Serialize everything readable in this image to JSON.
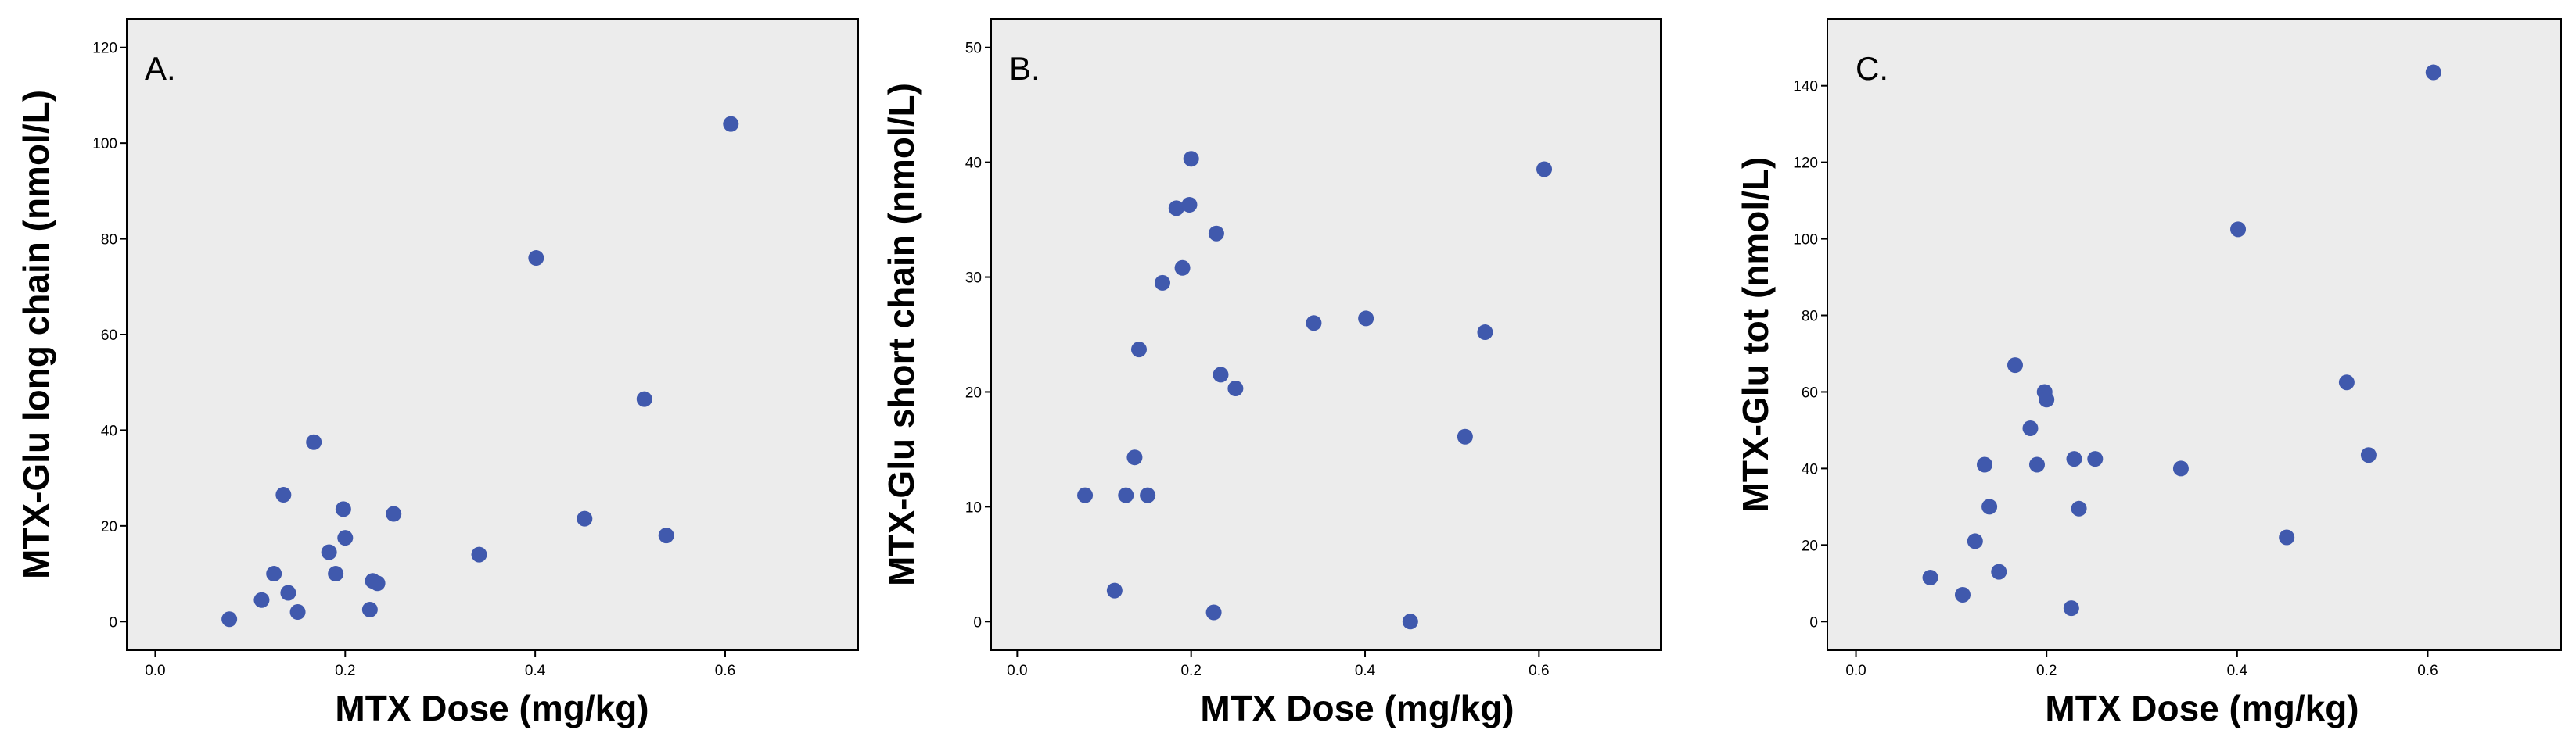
{
  "colors": {
    "point": "#4059ad",
    "plot_background": "#ececec",
    "axis": "#000000"
  },
  "chart_data": [
    {
      "type": "scatter",
      "panel_label": "A.",
      "xlabel": "MTX Dose (mg/kg)",
      "ylabel": "MTX-Glu long chain (nmol/L)",
      "xlim": [
        -0.03,
        0.74
      ],
      "ylim": [
        -6,
        126
      ],
      "xticks": [
        0.0,
        0.2,
        0.4,
        0.6
      ],
      "xtick_labels": [
        "0.0",
        "0.2",
        "0.4",
        "0.6"
      ],
      "yticks": [
        0,
        20,
        40,
        60,
        80,
        100,
        120
      ],
      "ytick_labels": [
        "0",
        "20",
        "40",
        "60",
        "80",
        "100",
        "120"
      ],
      "points": [
        {
          "x": 0.078,
          "y": 0.5
        },
        {
          "x": 0.112,
          "y": 4.5
        },
        {
          "x": 0.125,
          "y": 10.0
        },
        {
          "x": 0.135,
          "y": 26.5
        },
        {
          "x": 0.14,
          "y": 6.0
        },
        {
          "x": 0.15,
          "y": 2.0
        },
        {
          "x": 0.167,
          "y": 37.5
        },
        {
          "x": 0.183,
          "y": 14.5
        },
        {
          "x": 0.19,
          "y": 10.0
        },
        {
          "x": 0.198,
          "y": 23.5
        },
        {
          "x": 0.2,
          "y": 17.5
        },
        {
          "x": 0.226,
          "y": 2.5
        },
        {
          "x": 0.229,
          "y": 8.5
        },
        {
          "x": 0.234,
          "y": 8.0
        },
        {
          "x": 0.251,
          "y": 22.5
        },
        {
          "x": 0.341,
          "y": 14.0
        },
        {
          "x": 0.401,
          "y": 76.0
        },
        {
          "x": 0.452,
          "y": 21.5
        },
        {
          "x": 0.515,
          "y": 46.5
        },
        {
          "x": 0.538,
          "y": 18.0
        },
        {
          "x": 0.606,
          "y": 104.0
        }
      ]
    },
    {
      "type": "scatter",
      "panel_label": "B.",
      "xlabel": "MTX Dose (mg/kg)",
      "ylabel": "MTX-Glu short chain (nmol/L)",
      "xlim": [
        -0.03,
        0.74
      ],
      "ylim": [
        -2.5,
        52.5
      ],
      "xticks": [
        0.0,
        0.2,
        0.4,
        0.6
      ],
      "xtick_labels": [
        "0.0",
        "0.2",
        "0.4",
        "0.6"
      ],
      "yticks": [
        0,
        10,
        20,
        30,
        40,
        50
      ],
      "ytick_labels": [
        "0",
        "10",
        "20",
        "30",
        "40",
        "50"
      ],
      "points": [
        {
          "x": 0.078,
          "y": 11.0
        },
        {
          "x": 0.112,
          "y": 2.7
        },
        {
          "x": 0.125,
          "y": 11.0
        },
        {
          "x": 0.135,
          "y": 14.3
        },
        {
          "x": 0.14,
          "y": 23.7
        },
        {
          "x": 0.15,
          "y": 11.0
        },
        {
          "x": 0.167,
          "y": 29.5
        },
        {
          "x": 0.183,
          "y": 36.0
        },
        {
          "x": 0.19,
          "y": 30.8
        },
        {
          "x": 0.198,
          "y": 36.3
        },
        {
          "x": 0.2,
          "y": 40.3
        },
        {
          "x": 0.226,
          "y": 0.8
        },
        {
          "x": 0.229,
          "y": 33.8
        },
        {
          "x": 0.234,
          "y": 21.5
        },
        {
          "x": 0.251,
          "y": 20.3
        },
        {
          "x": 0.341,
          "y": 26.0
        },
        {
          "x": 0.401,
          "y": 26.4
        },
        {
          "x": 0.452,
          "y": 0.0
        },
        {
          "x": 0.515,
          "y": 16.1
        },
        {
          "x": 0.538,
          "y": 25.2
        },
        {
          "x": 0.606,
          "y": 39.4
        }
      ]
    },
    {
      "type": "scatter",
      "panel_label": "C.",
      "xlabel": "MTX Dose (mg/kg)",
      "ylabel": "MTX-Glu tot (nmol/L)",
      "xlim": [
        -0.03,
        0.74
      ],
      "ylim": [
        -7.5,
        157.5
      ],
      "xticks": [
        0.0,
        0.2,
        0.4,
        0.6
      ],
      "xtick_labels": [
        "0.0",
        "0.2",
        "0.4",
        "0.6"
      ],
      "yticks": [
        0,
        20,
        40,
        60,
        80,
        100,
        120,
        140
      ],
      "ytick_labels": [
        "0",
        "20",
        "40",
        "60",
        "80",
        "100",
        "120",
        "140"
      ],
      "points": [
        {
          "x": 0.078,
          "y": 11.5
        },
        {
          "x": 0.112,
          "y": 7.0
        },
        {
          "x": 0.125,
          "y": 21.0
        },
        {
          "x": 0.135,
          "y": 41.0
        },
        {
          "x": 0.14,
          "y": 30.0
        },
        {
          "x": 0.15,
          "y": 13.0
        },
        {
          "x": 0.167,
          "y": 67.0
        },
        {
          "x": 0.183,
          "y": 50.5
        },
        {
          "x": 0.19,
          "y": 41.0
        },
        {
          "x": 0.198,
          "y": 60.0
        },
        {
          "x": 0.2,
          "y": 58.0
        },
        {
          "x": 0.226,
          "y": 3.5
        },
        {
          "x": 0.229,
          "y": 42.5
        },
        {
          "x": 0.234,
          "y": 29.5
        },
        {
          "x": 0.251,
          "y": 42.5
        },
        {
          "x": 0.341,
          "y": 40.0
        },
        {
          "x": 0.401,
          "y": 102.5
        },
        {
          "x": 0.452,
          "y": 22.0
        },
        {
          "x": 0.515,
          "y": 62.5
        },
        {
          "x": 0.538,
          "y": 43.5
        },
        {
          "x": 0.606,
          "y": 143.5
        }
      ]
    }
  ]
}
